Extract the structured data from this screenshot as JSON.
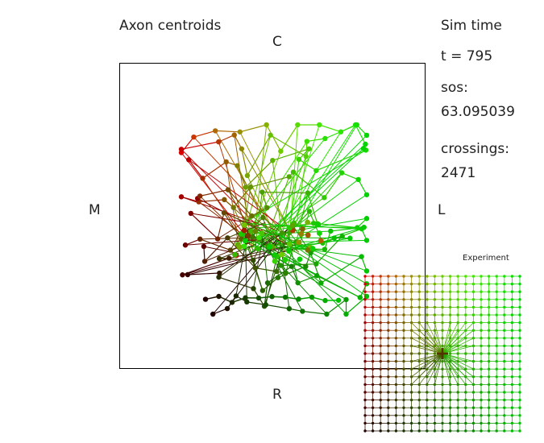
{
  "main_panel": {
    "title": "Axon centroids",
    "axis_top": "C",
    "axis_bottom": "R",
    "axis_left": "M",
    "axis_right": "L"
  },
  "sim_info": {
    "heading": "Sim time",
    "time_text": "t =  795",
    "sos_label": "sos:",
    "sos_value": "63.095039",
    "crossings_label": "crossings:",
    "crossings_value": "2471"
  },
  "experiment_panel": {
    "title": "Experiment",
    "grid_size": 21,
    "cross_center": [
      10,
      10
    ]
  },
  "colors": {
    "red": "#cc0000",
    "green": "#00cc00",
    "yellow": "#cccc00",
    "black": "#000000"
  }
}
